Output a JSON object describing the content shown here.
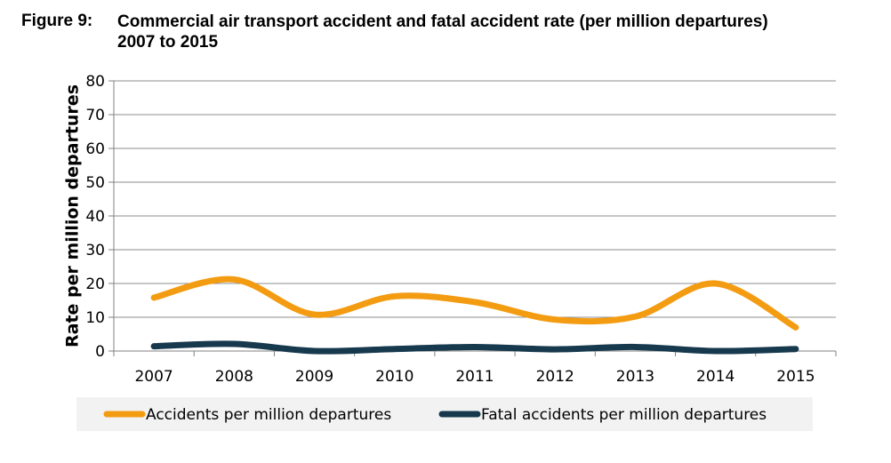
{
  "figure": {
    "label": "Figure 9:",
    "title": "Commercial air transport accident and fatal accident rate (per million departures) 2007 to 2015"
  },
  "chart_data": {
    "type": "line",
    "title": "Commercial air transport accident and fatal accident rate (per million departures) 2007 to 2015",
    "xlabel": "",
    "ylabel": "Rate per million departures",
    "categories": [
      "2007",
      "2008",
      "2009",
      "2010",
      "2011",
      "2012",
      "2013",
      "2014",
      "2015"
    ],
    "ylim": [
      0,
      80
    ],
    "yticks": [
      0,
      10,
      20,
      30,
      40,
      50,
      60,
      70,
      80
    ],
    "grid": true,
    "legend_position": "bottom",
    "smooth": true,
    "series": [
      {
        "name": "Accidents per million departures",
        "color": "#f39c12",
        "values": [
          15.8,
          21.2,
          10.8,
          16.2,
          14.5,
          9.3,
          10.2,
          20.0,
          7.0
        ]
      },
      {
        "name": "Fatal accidents per million departures",
        "color": "#17394d",
        "values": [
          1.4,
          2.1,
          0.0,
          0.6,
          1.2,
          0.5,
          1.2,
          0.0,
          0.6
        ]
      }
    ]
  }
}
